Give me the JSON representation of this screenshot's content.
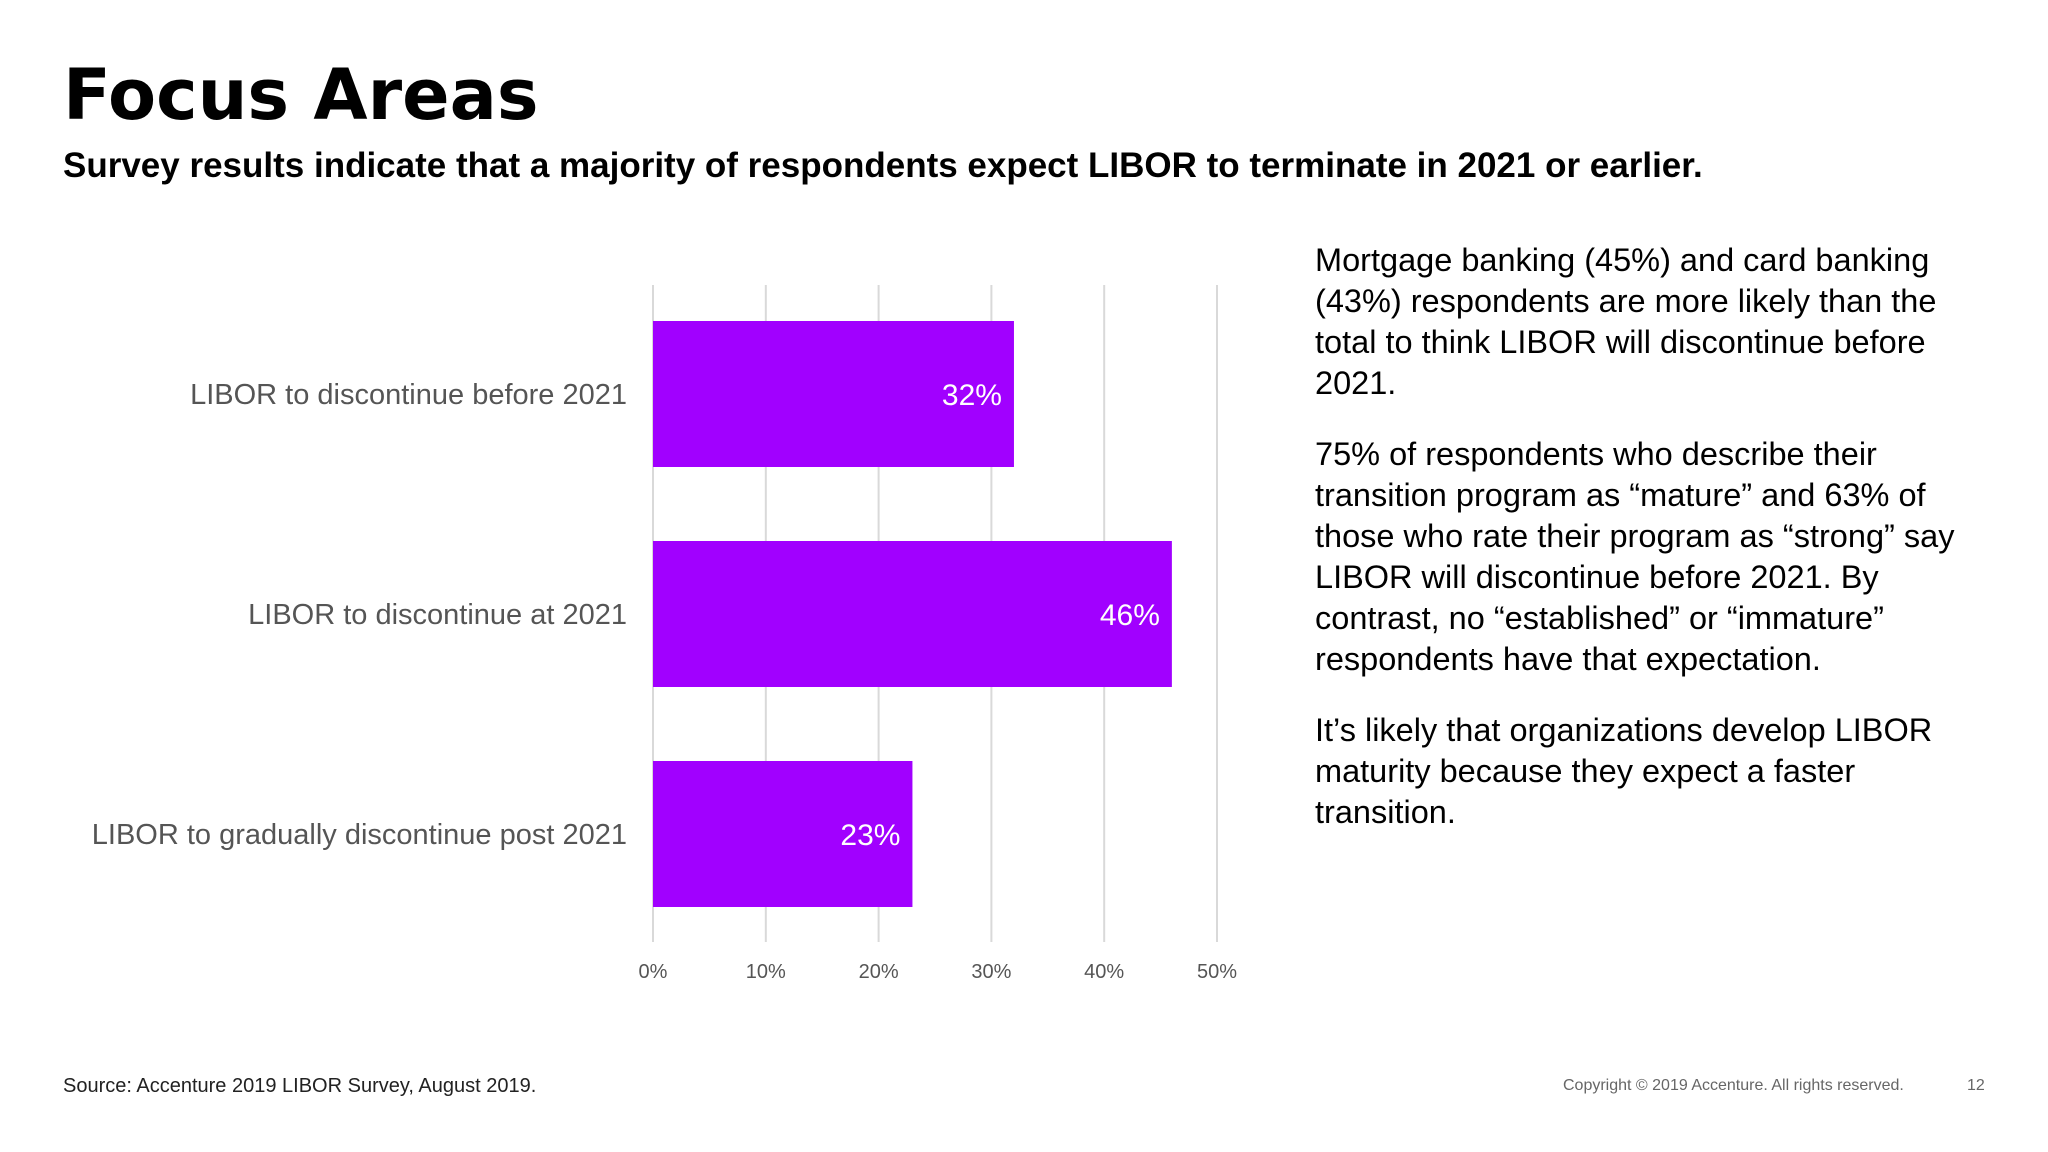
{
  "title": "Focus Areas",
  "subtitle": "Survey results indicate that a majority of respondents expect LIBOR to terminate in 2021 or earlier.",
  "chart_data": {
    "type": "bar",
    "orientation": "horizontal",
    "categories": [
      "LIBOR to discontinue before 2021",
      "LIBOR to discontinue at 2021",
      "LIBOR to gradually discontinue post 2021"
    ],
    "values": [
      32,
      46,
      23
    ],
    "data_labels": [
      "32%",
      "46%",
      "23%"
    ],
    "xlim": [
      0,
      50
    ],
    "x_ticks": [
      "0%",
      "10%",
      "20%",
      "30%",
      "40%",
      "50%"
    ],
    "grid": true,
    "bar_color": "#A100FF"
  },
  "side_paragraphs": [
    "Mortgage banking (45%) and card banking (43%) respondents are more likely than the total to think LIBOR will discontinue before 2021.",
    "75% of respondents who describe their transition program as “mature” and 63% of those who rate their program as “strong” say LIBOR will discontinue before 2021. By contrast, no “established” or “immature” respondents have that expectation.",
    "It’s likely that organizations develop LIBOR maturity because they expect a faster transition."
  ],
  "footer": {
    "source": "Source: Accenture 2019 LIBOR Survey, August 2019.",
    "copyright": "Copyright © 2019 Accenture. All rights reserved.",
    "page_number": "12"
  }
}
